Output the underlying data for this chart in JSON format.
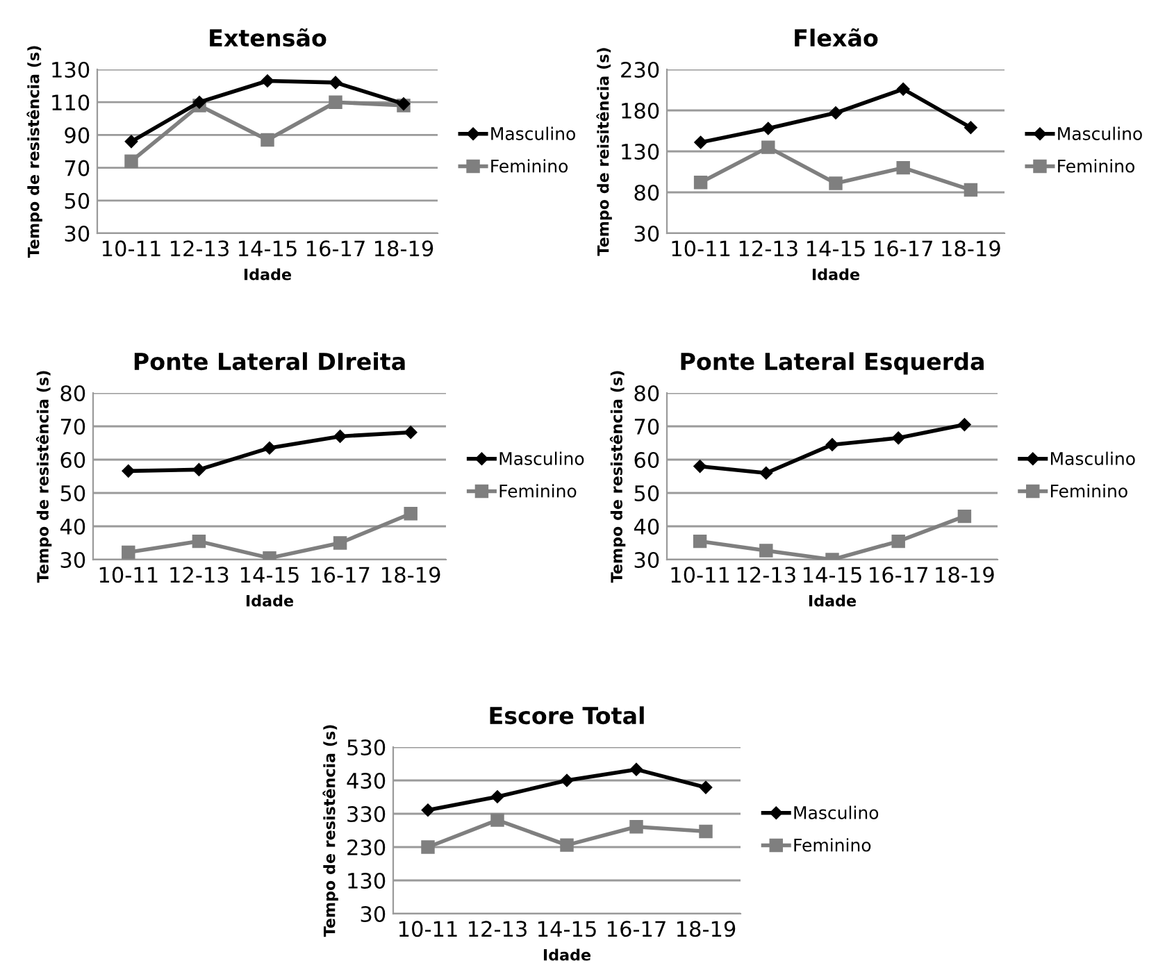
{
  "chart_data": [
    {
      "type": "line",
      "title": "Extensão",
      "xlabel": "Idade",
      "ylabel": "Tempo de resistência (s)",
      "categories": [
        "10-11",
        "12-13",
        "14-15",
        "16-17",
        "18-19"
      ],
      "series": [
        {
          "name": "Masculino",
          "color": "#000000",
          "marker": "diamond",
          "values": [
            86,
            110,
            123,
            122,
            109
          ]
        },
        {
          "name": "Feminino",
          "color": "#7f7f7f",
          "marker": "square",
          "values": [
            74,
            108,
            87,
            110,
            108
          ]
        }
      ],
      "ylim": [
        30,
        130
      ],
      "yticks": [
        30,
        50,
        70,
        90,
        110,
        130
      ],
      "grid": "y",
      "legend": "right",
      "line_style": "solid"
    },
    {
      "type": "line",
      "title": "Flexão",
      "xlabel": "Idade",
      "ylabel": "Tempo de reisitência (s)",
      "categories": [
        "10-11",
        "12-13",
        "14-15",
        "16-17",
        "18-19"
      ],
      "series": [
        {
          "name": "Masculino",
          "color": "#000000",
          "marker": "diamond",
          "values": [
            141,
            158,
            177,
            206,
            159
          ]
        },
        {
          "name": "Feminino",
          "color": "#7f7f7f",
          "marker": "square",
          "values": [
            92,
            135,
            91,
            110,
            83
          ]
        }
      ],
      "ylim": [
        30,
        230
      ],
      "yticks": [
        30,
        80,
        130,
        180,
        230
      ],
      "grid": "y",
      "legend": "right",
      "line_style": "solid"
    },
    {
      "type": "line",
      "title": "Ponte Lateral DIreita",
      "xlabel": "Idade",
      "ylabel": "Tempo de resistência (s)",
      "categories": [
        "10-11",
        "12-13",
        "14-15",
        "16-17",
        "18-19"
      ],
      "series": [
        {
          "name": "Masculino",
          "color": "#000000",
          "marker": "diamond",
          "values": [
            56.6,
            57,
            63.5,
            67,
            68.2
          ]
        },
        {
          "name": "Feminino",
          "color": "#7f7f7f",
          "marker": "square",
          "values": [
            32.2,
            35.5,
            30.5,
            35,
            43.8
          ]
        }
      ],
      "ylim": [
        30,
        80
      ],
      "yticks": [
        30,
        40,
        50,
        60,
        70,
        80
      ],
      "grid": "y",
      "legend": "right",
      "line_style": "solid"
    },
    {
      "type": "line",
      "title": "Ponte Lateral Esquerda",
      "xlabel": "Idade",
      "ylabel": "Tempo de resistência (s)",
      "categories": [
        "10-11",
        "12-13",
        "14-15",
        "16-17",
        "18-19"
      ],
      "series": [
        {
          "name": "Masculino",
          "color": "#000000",
          "marker": "diamond",
          "values": [
            58,
            56,
            64.5,
            66.5,
            70.5
          ]
        },
        {
          "name": "Feminino",
          "color": "#7f7f7f",
          "marker": "square",
          "values": [
            35.5,
            32.7,
            30,
            35.5,
            43
          ]
        }
      ],
      "ylim": [
        30,
        80
      ],
      "yticks": [
        30,
        40,
        50,
        60,
        70,
        80
      ],
      "grid": "y",
      "legend": "right",
      "line_style": "solid"
    },
    {
      "type": "line",
      "title": "Escore Total",
      "xlabel": "Idade",
      "ylabel": "Tempo de resistência (s)",
      "categories": [
        "10-11",
        "12-13",
        "14-15",
        "16-17",
        "18-19"
      ],
      "series": [
        {
          "name": "Masculino",
          "color": "#000000",
          "marker": "diamond",
          "values": [
            341,
            381,
            430,
            463,
            409
          ]
        },
        {
          "name": "Feminino",
          "color": "#7f7f7f",
          "marker": "square",
          "values": [
            230,
            311,
            236,
            291,
            277
          ]
        }
      ],
      "ylim": [
        30,
        530
      ],
      "yticks": [
        30,
        130,
        230,
        330,
        430,
        530
      ],
      "grid": "y",
      "legend": "right",
      "line_style": "solid"
    }
  ]
}
